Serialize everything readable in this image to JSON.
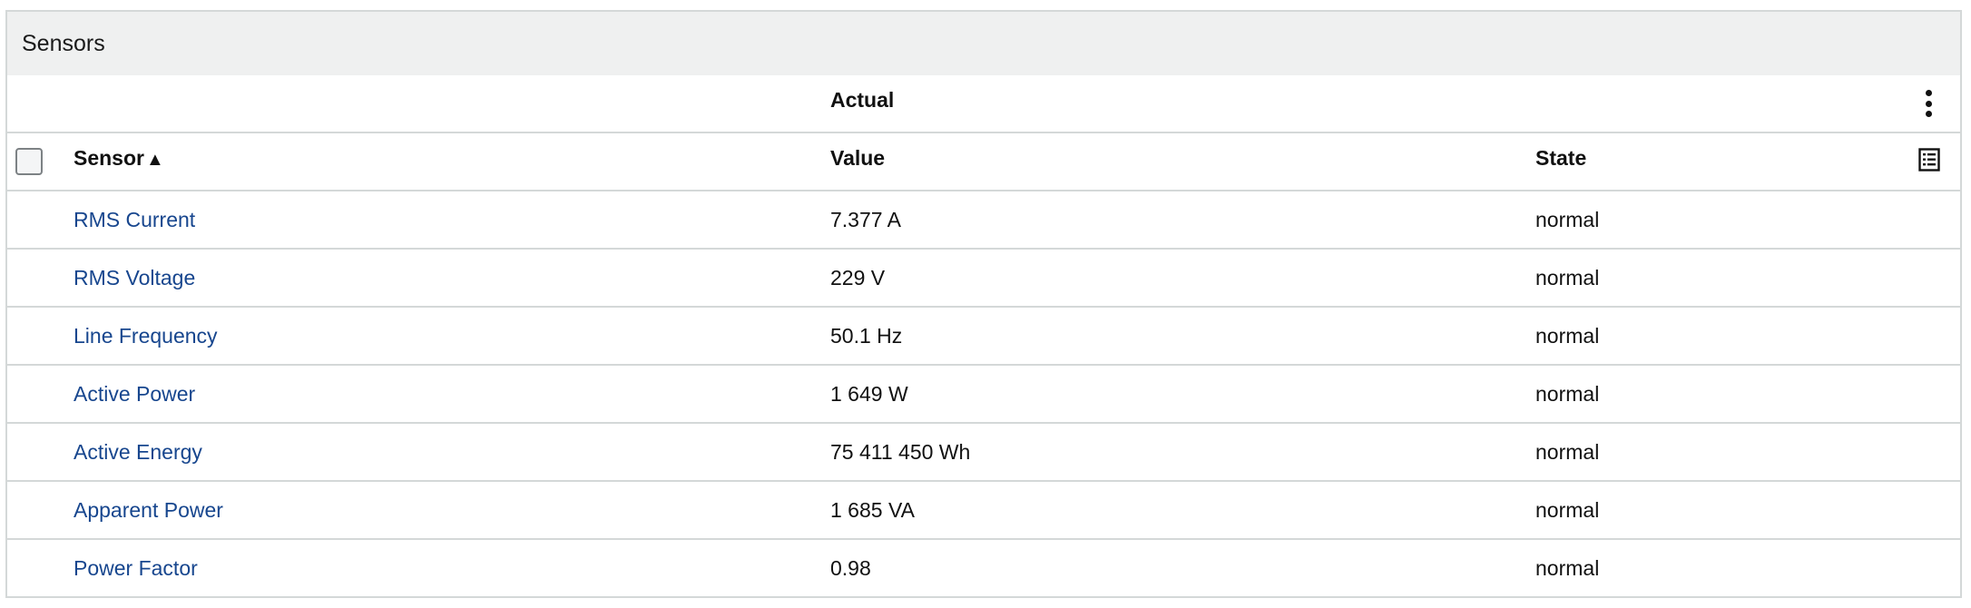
{
  "panel": {
    "title": "Sensors"
  },
  "table": {
    "group_header": "Actual",
    "columns": {
      "sensor": "Sensor",
      "sort_indicator": "▲",
      "value": "Value",
      "state": "State"
    },
    "rows": [
      {
        "sensor": "RMS Current",
        "value": "7.377 A",
        "state": "normal"
      },
      {
        "sensor": "RMS Voltage",
        "value": "229 V",
        "state": "normal"
      },
      {
        "sensor": "Line Frequency",
        "value": "50.1 Hz",
        "state": "normal"
      },
      {
        "sensor": "Active Power",
        "value": "1 649 W",
        "state": "normal"
      },
      {
        "sensor": "Active Energy",
        "value": "75 411 450 Wh",
        "state": "normal"
      },
      {
        "sensor": "Apparent Power",
        "value": "1 685 VA",
        "state": "normal"
      },
      {
        "sensor": "Power Factor",
        "value": "0.98",
        "state": "normal"
      }
    ]
  },
  "icons": {
    "menu": "more-vertical-icon",
    "columns": "list-view-icon"
  },
  "colors": {
    "link": "#17468e",
    "header_bg": "#eff0f0",
    "border": "#d4d8d8"
  }
}
